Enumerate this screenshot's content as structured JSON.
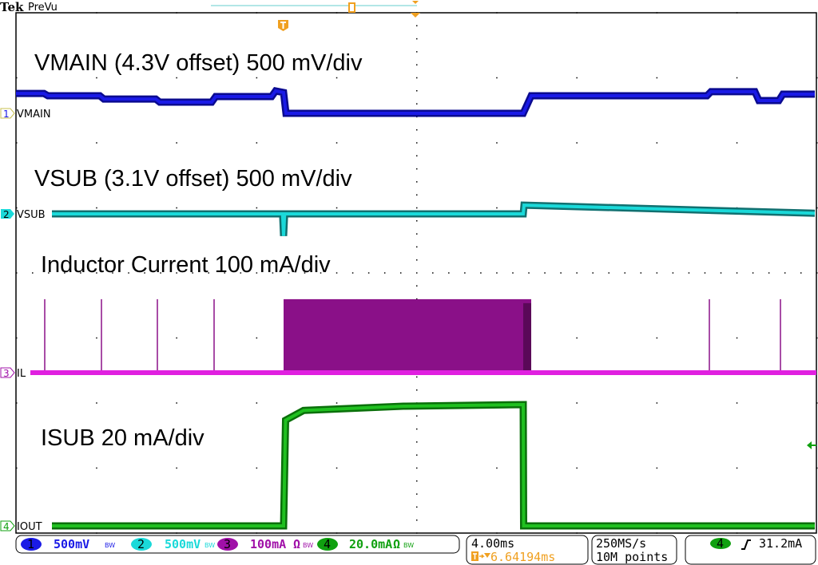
{
  "header": {
    "brand": "Tek",
    "mode": "PreVu"
  },
  "colors": {
    "ch1": "#1a1ae6",
    "ch2": "#1ad9d9",
    "ch3": "#a010a8",
    "ch4": "#10a010",
    "trigger": "#f0a020"
  },
  "annotations": {
    "ch1": "VMAIN (4.3V offset) 500 mV/div",
    "ch2": "VSUB (3.1V offset) 500 mV/div",
    "ch3": "Inductor Current 100 mA/div",
    "ch4": "ISUB 20 mA/div"
  },
  "channels": [
    {
      "num": "1",
      "label": "VMAIN",
      "scale": "500mV",
      "bw": "BW",
      "ohm": ""
    },
    {
      "num": "2",
      "label": "VSUB",
      "scale": "500mV",
      "bw": "BW",
      "ohm": ""
    },
    {
      "num": "3",
      "label": "IL",
      "scale": "100mA",
      "bw": "BW",
      "ohm": "Ω"
    },
    {
      "num": "4",
      "label": "IOUT",
      "scale": "20.0mA",
      "bw": "BW",
      "ohm": "Ω"
    }
  ],
  "timebase": {
    "scale": "4.00ms",
    "trigger_delay": "6.64194ms"
  },
  "acquisition": {
    "rate": "250MS/s",
    "record": "10M points"
  },
  "trigger": {
    "source": "4",
    "slope": "rising",
    "level": "31.2mA"
  },
  "chart_data": {
    "type": "line",
    "xlabel": "",
    "ylabel": "",
    "x_unit": "ms (relative to trigger)",
    "xlim": [
      -13.4,
      26.6
    ],
    "grid": true,
    "time_per_div_ms": 4,
    "series": [
      {
        "name": "VMAIN",
        "unit": "V",
        "volts_per_div": 0.5,
        "offset": 4.3,
        "points": [
          [
            -13.4,
            4.453
          ],
          [
            -12.0,
            4.453
          ],
          [
            -11.8,
            4.435
          ],
          [
            -9.2,
            4.435
          ],
          [
            -9.0,
            4.41
          ],
          [
            -6.4,
            4.41
          ],
          [
            -6.2,
            4.386
          ],
          [
            -3.6,
            4.386
          ],
          [
            -3.4,
            4.429
          ],
          [
            -0.6,
            4.429
          ],
          [
            -0.4,
            4.472
          ],
          [
            0,
            4.46
          ],
          [
            0.12,
            4.3
          ],
          [
            12.0,
            4.3
          ],
          [
            12.4,
            4.435
          ],
          [
            21.2,
            4.435
          ],
          [
            21.4,
            4.466
          ],
          [
            23.6,
            4.466
          ],
          [
            23.8,
            4.398
          ],
          [
            24.8,
            4.398
          ],
          [
            25.0,
            4.447
          ],
          [
            26.6,
            4.447
          ]
        ]
      },
      {
        "name": "VSUB",
        "unit": "V",
        "volts_per_div": 0.5,
        "offset": 3.1,
        "points": [
          [
            -11.6,
            3.1
          ],
          [
            -0.05,
            3.1
          ],
          [
            0,
            2.93
          ],
          [
            0.05,
            3.1
          ],
          [
            12.0,
            3.1
          ],
          [
            12.04,
            3.167
          ],
          [
            26.6,
            3.105
          ]
        ]
      },
      {
        "name": "IL",
        "unit": "A",
        "amps_per_div": 0.1,
        "baseline": 0,
        "spikes": [
          [
            -11.96,
            0.113
          ],
          [
            -9.12,
            0.113
          ],
          [
            -6.32,
            0.113
          ],
          [
            -3.48,
            0.113
          ],
          [
            21.32,
            0.113
          ],
          [
            24.88,
            0.113
          ]
        ],
        "switching_burst": {
          "start": 0,
          "end": 12.4,
          "peak": 0.113
        }
      },
      {
        "name": "IOUT",
        "unit": "A",
        "amps_per_div": 0.02,
        "points": [
          [
            -11.6,
            0
          ],
          [
            0,
            0
          ],
          [
            0.1,
            0.0325
          ],
          [
            1,
            0.0355
          ],
          [
            6,
            0.0368
          ],
          [
            12,
            0.0373
          ],
          [
            12.02,
            0
          ],
          [
            26.6,
            0
          ]
        ]
      }
    ]
  }
}
